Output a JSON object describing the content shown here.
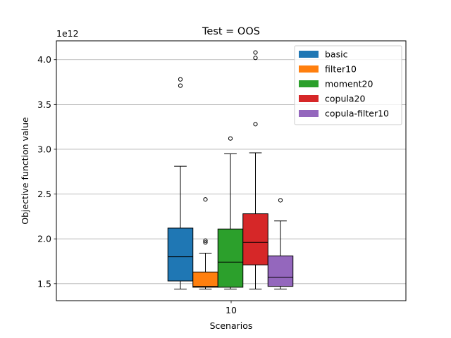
{
  "chart_data": {
    "type": "box",
    "title": "Test = OOS",
    "xlabel": "Scenarios",
    "ylabel": "Objective function value",
    "y_offset_label": "1e12",
    "y_scale": 1000000000000.0,
    "categories": [
      "10"
    ],
    "ylim": [
      1.31,
      4.21
    ],
    "yticks": [
      1.5,
      2.0,
      2.5,
      3.0,
      3.5,
      4.0
    ],
    "ytick_labels": [
      "1.5",
      "2.0",
      "2.5",
      "3.0",
      "3.5",
      "4.0"
    ],
    "grid": "y",
    "legend_position": "top-right",
    "series": [
      {
        "name": "basic",
        "color": "#1f77b4",
        "whisker_low": 1.44,
        "q1": 1.53,
        "median": 1.8,
        "q3": 2.12,
        "whisker_high": 2.81,
        "outliers": [
          3.71,
          3.78
        ]
      },
      {
        "name": "filter10",
        "color": "#ff7f0e",
        "whisker_low": 1.44,
        "q1": 1.46,
        "median": 1.47,
        "q3": 1.63,
        "whisker_high": 1.84,
        "outliers": [
          1.96,
          1.98,
          2.44
        ]
      },
      {
        "name": "moment20",
        "color": "#2ca02c",
        "whisker_low": 1.44,
        "q1": 1.46,
        "median": 1.74,
        "q3": 2.11,
        "whisker_high": 2.95,
        "outliers": [
          3.12
        ]
      },
      {
        "name": "copula20",
        "color": "#d62728",
        "whisker_low": 1.44,
        "q1": 1.71,
        "median": 1.96,
        "q3": 2.28,
        "whisker_high": 2.96,
        "outliers": [
          3.28,
          4.02,
          4.08
        ]
      },
      {
        "name": "copula-filter10",
        "color": "#9467bd",
        "whisker_low": 1.44,
        "q1": 1.47,
        "median": 1.57,
        "q3": 1.81,
        "whisker_high": 2.2,
        "outliers": [
          2.43
        ]
      }
    ]
  }
}
